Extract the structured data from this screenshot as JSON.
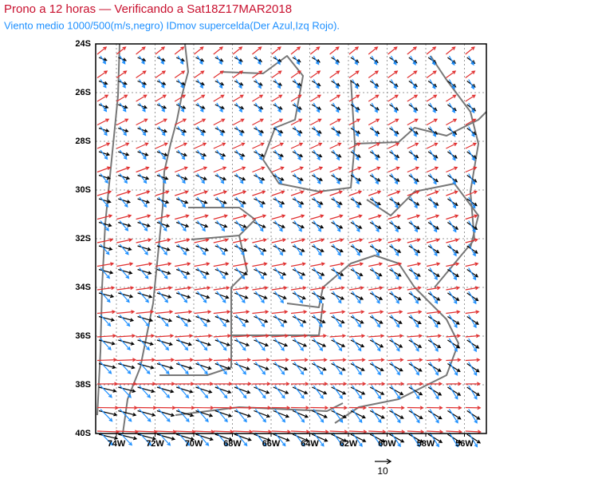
{
  "header": {
    "title": "Prono a 12 horas — Verificando a Sat18Z17MAR2018",
    "subtitle": "Viento medio 1000/500(m/s,negro) IDmov supercelda(Der Azul,Izq Rojo)."
  },
  "map": {
    "lat_labels": [
      "24S",
      "26S",
      "28S",
      "30S",
      "32S",
      "34S",
      "36S",
      "38S",
      "40S"
    ],
    "lon_labels": [
      "74W",
      "72W",
      "70W",
      "68W",
      "66W",
      "64W",
      "62W",
      "60W",
      "58W",
      "56W"
    ],
    "reference_vector_label": "10"
  }
}
